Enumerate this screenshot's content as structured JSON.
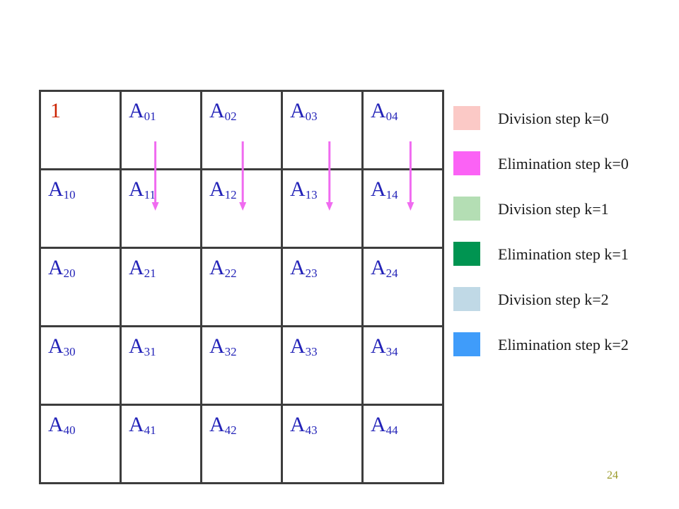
{
  "matrix": {
    "rows": [
      [
        {
          "base": "1",
          "sub": ""
        },
        {
          "base": "A",
          "sub": "01"
        },
        {
          "base": "A",
          "sub": "02"
        },
        {
          "base": "A",
          "sub": "03"
        },
        {
          "base": "A",
          "sub": "04"
        }
      ],
      [
        {
          "base": "A",
          "sub": "10"
        },
        {
          "base": "A",
          "sub": "11"
        },
        {
          "base": "A",
          "sub": "12"
        },
        {
          "base": "A",
          "sub": "13"
        },
        {
          "base": "A",
          "sub": "14"
        }
      ],
      [
        {
          "base": "A",
          "sub": "20"
        },
        {
          "base": "A",
          "sub": "21"
        },
        {
          "base": "A",
          "sub": "22"
        },
        {
          "base": "A",
          "sub": "23"
        },
        {
          "base": "A",
          "sub": "24"
        }
      ],
      [
        {
          "base": "A",
          "sub": "30"
        },
        {
          "base": "A",
          "sub": "31"
        },
        {
          "base": "A",
          "sub": "32"
        },
        {
          "base": "A",
          "sub": "33"
        },
        {
          "base": "A",
          "sub": "34"
        }
      ],
      [
        {
          "base": "A",
          "sub": "40"
        },
        {
          "base": "A",
          "sub": "41"
        },
        {
          "base": "A",
          "sub": "42"
        },
        {
          "base": "A",
          "sub": "43"
        },
        {
          "base": "A",
          "sub": "44"
        }
      ]
    ],
    "arrow_columns": [
      1,
      2,
      3,
      4
    ],
    "arrow_color": "#f06bf0",
    "label_color": "#2323b8",
    "pivot_color": "#cc2200"
  },
  "legend": [
    {
      "label": "Division step k=0",
      "color": "#fbc9c6"
    },
    {
      "label": "Elimination step k=0",
      "color": "#fb62f5"
    },
    {
      "label": "Division step k=1",
      "color": "#b4deb4"
    },
    {
      "label": "Elimination step k=1",
      "color": "#009451"
    },
    {
      "label": "Division step k=2",
      "color": "#c0d9e6"
    },
    {
      "label": "Elimination step k=2",
      "color": "#3f9cfa"
    }
  ],
  "page_number": "24"
}
